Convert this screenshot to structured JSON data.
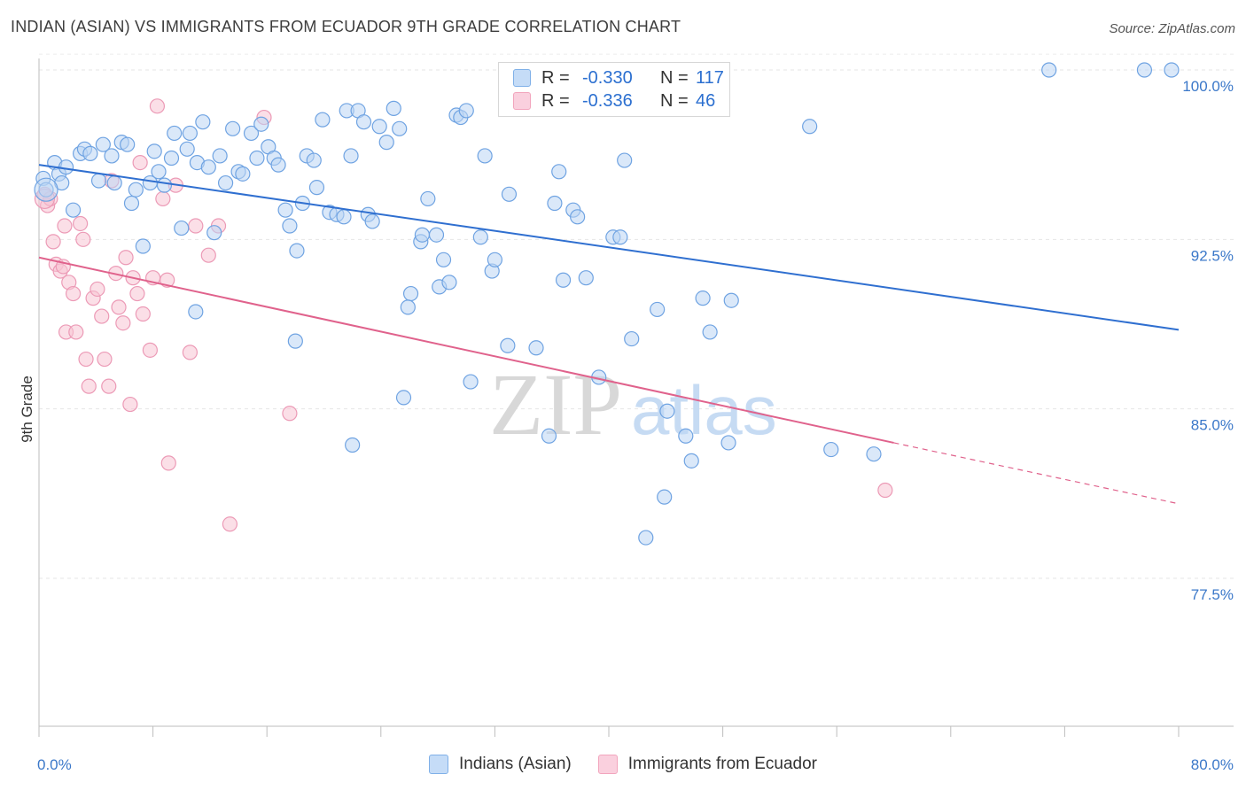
{
  "title": "INDIAN (ASIAN) VS IMMIGRANTS FROM ECUADOR 9TH GRADE CORRELATION CHART",
  "source": "Source: ZipAtlas.com",
  "watermark_zip": "ZIP",
  "watermark_atlas": "atlas",
  "legend": {
    "r_label": "R =",
    "n_label": "N =",
    "series1": {
      "r": "-0.330",
      "n": "117"
    },
    "series2": {
      "r": "-0.336",
      "n": "46"
    }
  },
  "chart_data": {
    "type": "scatter",
    "title": "INDIAN (ASIAN) VS IMMIGRANTS FROM ECUADOR 9TH GRADE CORRELATION CHART",
    "xlabel": "",
    "ylabel": "9th Grade",
    "xlim": [
      0,
      80
    ],
    "ylim": [
      70,
      100.7
    ],
    "x_tick_labels": [
      "0.0%",
      "80.0%"
    ],
    "y_ticks": [
      77.5,
      85.0,
      92.5,
      100.0
    ],
    "y_tick_labels": [
      "77.5%",
      "85.0%",
      "92.5%",
      "100.0%"
    ],
    "grid": true,
    "legend_position": "top-center",
    "series": [
      {
        "name": "Indians (Asian)",
        "color": "#7fb0e8",
        "line_color": "#2f6fd0",
        "trend": {
          "x": [
            0,
            80
          ],
          "y": [
            95.8,
            88.5
          ]
        },
        "points": [
          [
            0.3,
            95.2
          ],
          [
            0.5,
            94.7
          ],
          [
            1.1,
            95.9
          ],
          [
            1.4,
            95.4
          ],
          [
            1.6,
            95.0
          ],
          [
            1.9,
            95.7
          ],
          [
            2.4,
            93.8
          ],
          [
            2.9,
            96.3
          ],
          [
            3.2,
            96.5
          ],
          [
            3.6,
            96.3
          ],
          [
            4.2,
            95.1
          ],
          [
            4.5,
            96.7
          ],
          [
            5.1,
            96.2
          ],
          [
            5.3,
            95.0
          ],
          [
            5.8,
            96.8
          ],
          [
            6.2,
            96.7
          ],
          [
            6.5,
            94.1
          ],
          [
            6.8,
            94.7
          ],
          [
            7.3,
            92.2
          ],
          [
            7.8,
            95.0
          ],
          [
            8.1,
            96.4
          ],
          [
            8.4,
            95.5
          ],
          [
            8.8,
            94.9
          ],
          [
            9.3,
            96.1
          ],
          [
            9.5,
            97.2
          ],
          [
            10.0,
            93.0
          ],
          [
            10.4,
            96.5
          ],
          [
            10.6,
            97.2
          ],
          [
            11.1,
            95.9
          ],
          [
            11.5,
            97.7
          ],
          [
            11.9,
            95.7
          ],
          [
            12.3,
            92.8
          ],
          [
            12.7,
            96.2
          ],
          [
            13.1,
            95.0
          ],
          [
            13.6,
            97.4
          ],
          [
            14.0,
            95.5
          ],
          [
            14.3,
            95.4
          ],
          [
            14.9,
            97.2
          ],
          [
            15.3,
            96.1
          ],
          [
            15.6,
            97.6
          ],
          [
            16.1,
            96.6
          ],
          [
            16.5,
            96.1
          ],
          [
            16.8,
            95.8
          ],
          [
            17.3,
            93.8
          ],
          [
            17.6,
            93.1
          ],
          [
            18.1,
            92.0
          ],
          [
            18.5,
            94.1
          ],
          [
            18.8,
            96.2
          ],
          [
            19.3,
            96.0
          ],
          [
            19.5,
            94.8
          ],
          [
            19.9,
            97.8
          ],
          [
            20.4,
            93.7
          ],
          [
            20.9,
            93.6
          ],
          [
            21.4,
            93.5
          ],
          [
            21.6,
            98.2
          ],
          [
            21.9,
            96.2
          ],
          [
            22.4,
            98.2
          ],
          [
            22.8,
            97.7
          ],
          [
            23.1,
            93.6
          ],
          [
            23.4,
            93.3
          ],
          [
            23.9,
            97.5
          ],
          [
            24.4,
            96.8
          ],
          [
            24.9,
            98.3
          ],
          [
            25.3,
            97.4
          ],
          [
            25.6,
            85.5
          ],
          [
            26.1,
            90.1
          ],
          [
            26.8,
            92.4
          ],
          [
            26.9,
            92.7
          ],
          [
            27.3,
            94.3
          ],
          [
            27.9,
            92.7
          ],
          [
            28.1,
            90.4
          ],
          [
            28.4,
            91.6
          ],
          [
            28.8,
            90.6
          ],
          [
            29.3,
            98.0
          ],
          [
            29.6,
            97.9
          ],
          [
            30.0,
            98.2
          ],
          [
            30.3,
            86.2
          ],
          [
            31.0,
            92.6
          ],
          [
            31.3,
            96.2
          ],
          [
            31.8,
            91.1
          ],
          [
            32.0,
            91.6
          ],
          [
            32.9,
            87.8
          ],
          [
            33.0,
            94.5
          ],
          [
            33.3,
            100.0
          ],
          [
            34.9,
            87.7
          ],
          [
            35.8,
            83.8
          ],
          [
            36.2,
            94.1
          ],
          [
            36.5,
            95.5
          ],
          [
            36.8,
            90.7
          ],
          [
            37.5,
            93.8
          ],
          [
            37.8,
            93.5
          ],
          [
            38.4,
            90.8
          ],
          [
            39.3,
            86.4
          ],
          [
            40.3,
            92.6
          ],
          [
            40.8,
            92.6
          ],
          [
            41.1,
            96.0
          ],
          [
            41.6,
            88.1
          ],
          [
            42.6,
            79.3
          ],
          [
            43.4,
            89.4
          ],
          [
            43.9,
            81.1
          ],
          [
            44.1,
            84.9
          ],
          [
            45.4,
            83.8
          ],
          [
            45.8,
            82.7
          ],
          [
            46.6,
            89.9
          ],
          [
            47.1,
            88.4
          ],
          [
            48.4,
            83.5
          ],
          [
            48.6,
            89.8
          ],
          [
            54.1,
            97.5
          ],
          [
            55.6,
            83.2
          ],
          [
            58.6,
            83.0
          ],
          [
            70.9,
            100.0
          ],
          [
            77.6,
            100.0
          ],
          [
            79.5,
            100.0
          ],
          [
            11.0,
            89.3
          ],
          [
            18.0,
            88.0
          ],
          [
            25.9,
            89.5
          ],
          [
            22.0,
            83.4
          ]
        ]
      },
      {
        "name": "Immigrants from Ecuador",
        "color": "#f2a5bd",
        "line_color": "#e0628c",
        "trend": {
          "x": [
            0,
            60
          ],
          "y": [
            91.7,
            83.5
          ]
        },
        "dashed_trend": {
          "x": [
            60,
            80
          ],
          "y": [
            83.5,
            80.8
          ]
        },
        "points": [
          [
            0.4,
            94.5
          ],
          [
            0.6,
            94.0
          ],
          [
            0.8,
            94.3
          ],
          [
            1.0,
            92.4
          ],
          [
            1.2,
            91.4
          ],
          [
            1.5,
            91.1
          ],
          [
            1.8,
            93.1
          ],
          [
            1.9,
            88.4
          ],
          [
            2.1,
            90.6
          ],
          [
            2.4,
            90.1
          ],
          [
            2.6,
            88.4
          ],
          [
            2.9,
            93.2
          ],
          [
            3.1,
            92.5
          ],
          [
            3.3,
            87.2
          ],
          [
            3.5,
            86.0
          ],
          [
            3.8,
            89.9
          ],
          [
            4.1,
            90.3
          ],
          [
            4.4,
            89.1
          ],
          [
            4.6,
            87.2
          ],
          [
            4.9,
            86.0
          ],
          [
            5.1,
            95.1
          ],
          [
            5.4,
            91.0
          ],
          [
            5.6,
            89.5
          ],
          [
            5.9,
            88.8
          ],
          [
            6.1,
            91.7
          ],
          [
            6.4,
            85.2
          ],
          [
            6.6,
            90.8
          ],
          [
            6.9,
            90.1
          ],
          [
            7.1,
            95.9
          ],
          [
            7.3,
            89.2
          ],
          [
            7.8,
            87.6
          ],
          [
            8.0,
            90.8
          ],
          [
            8.3,
            98.4
          ],
          [
            8.7,
            94.3
          ],
          [
            9.1,
            82.6
          ],
          [
            9.6,
            94.9
          ],
          [
            10.6,
            87.5
          ],
          [
            11.0,
            93.1
          ],
          [
            11.9,
            91.8
          ],
          [
            12.6,
            93.1
          ],
          [
            13.4,
            79.9
          ],
          [
            15.8,
            97.9
          ],
          [
            17.6,
            84.8
          ],
          [
            59.4,
            81.4
          ],
          [
            1.7,
            91.3
          ],
          [
            9.0,
            90.7
          ]
        ]
      }
    ]
  }
}
